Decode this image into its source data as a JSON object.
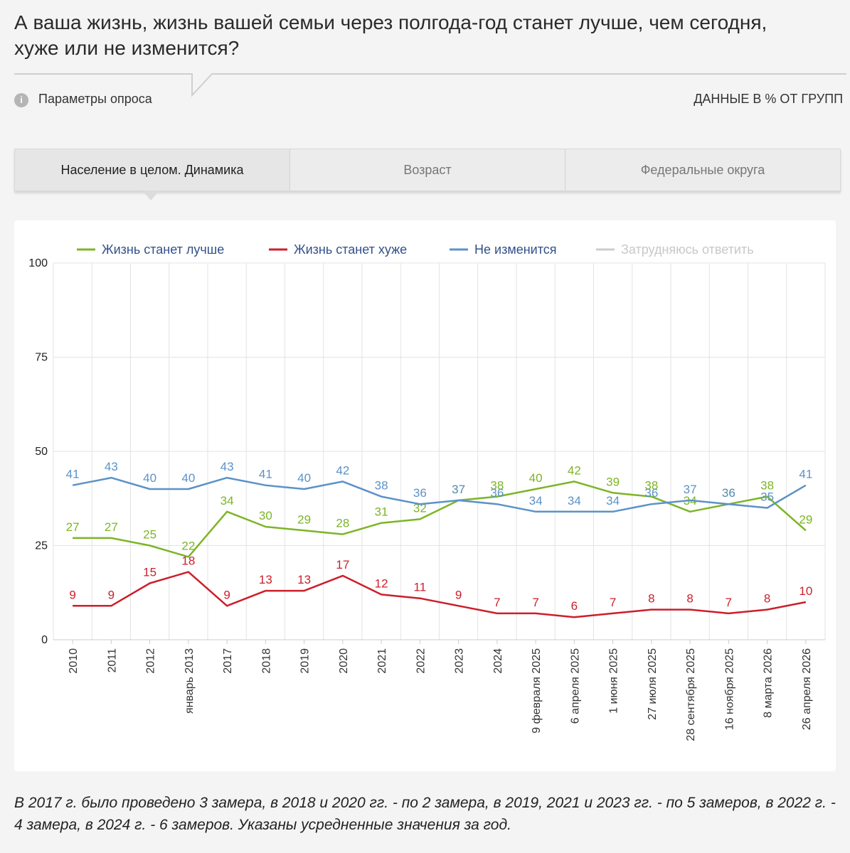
{
  "header": {
    "title": "А ваша жизнь, жизнь вашей семьи через полгода-год станет лучше, чем сегодня, хуже или не изменится?",
    "params": "Параметры опроса",
    "units": "ДАННЫЕ В % ОТ ГРУПП"
  },
  "tabs": [
    "Население в целом. Динамика",
    "Возраст",
    "Федеральные округа"
  ],
  "chart_data": {
    "type": "line",
    "categories": [
      "2010",
      "2011",
      "2012",
      "январь 2013",
      "2017",
      "2018",
      "2019",
      "2020",
      "2021",
      "2022",
      "2023",
      "2024",
      "9 февраля 2025",
      "6 апреля 2025",
      "1 июня 2025",
      "27 июля 2025",
      "28 сентября 2025",
      "16 ноября 2025",
      "8 марта 2026",
      "26 апреля 2026"
    ],
    "series": [
      {
        "name": "Жизнь станет лучше",
        "color": "#7cb526",
        "values": [
          27,
          27,
          25,
          22,
          34,
          30,
          29,
          28,
          31,
          32,
          37,
          38,
          40,
          42,
          39,
          38,
          34,
          36,
          38,
          29
        ]
      },
      {
        "name": "Жизнь станет хуже",
        "color": "#cc1f2b",
        "values": [
          9,
          9,
          15,
          18,
          9,
          13,
          13,
          17,
          12,
          11,
          9,
          7,
          7,
          6,
          7,
          8,
          8,
          7,
          8,
          10
        ]
      },
      {
        "name": "Не изменится",
        "color": "#5b92c8",
        "values": [
          41,
          43,
          40,
          40,
          43,
          41,
          40,
          42,
          38,
          36,
          37,
          36,
          34,
          34,
          34,
          36,
          37,
          36,
          35,
          41
        ]
      },
      {
        "name": "Затрудняюсь ответить",
        "color": "#cccccc",
        "visible": false,
        "values": [
          null,
          null,
          null,
          null,
          null,
          null,
          null,
          null,
          null,
          null,
          null,
          null,
          null,
          null,
          null,
          null,
          null,
          null,
          null,
          null
        ]
      }
    ],
    "ylim": [
      0,
      100
    ],
    "yticks": [
      0,
      25,
      50,
      75,
      100
    ],
    "grid": true,
    "legend": "top"
  },
  "footnote": "В 2017 г. было проведено 3 замера, в 2018 и 2020 гг. - по 2 замера, в 2019, 2021 и 2023 гг. - по 5 замеров, в 2022 г. - 4 замера, в 2024 г. - 6 замеров. Указаны усредненные значения за год."
}
